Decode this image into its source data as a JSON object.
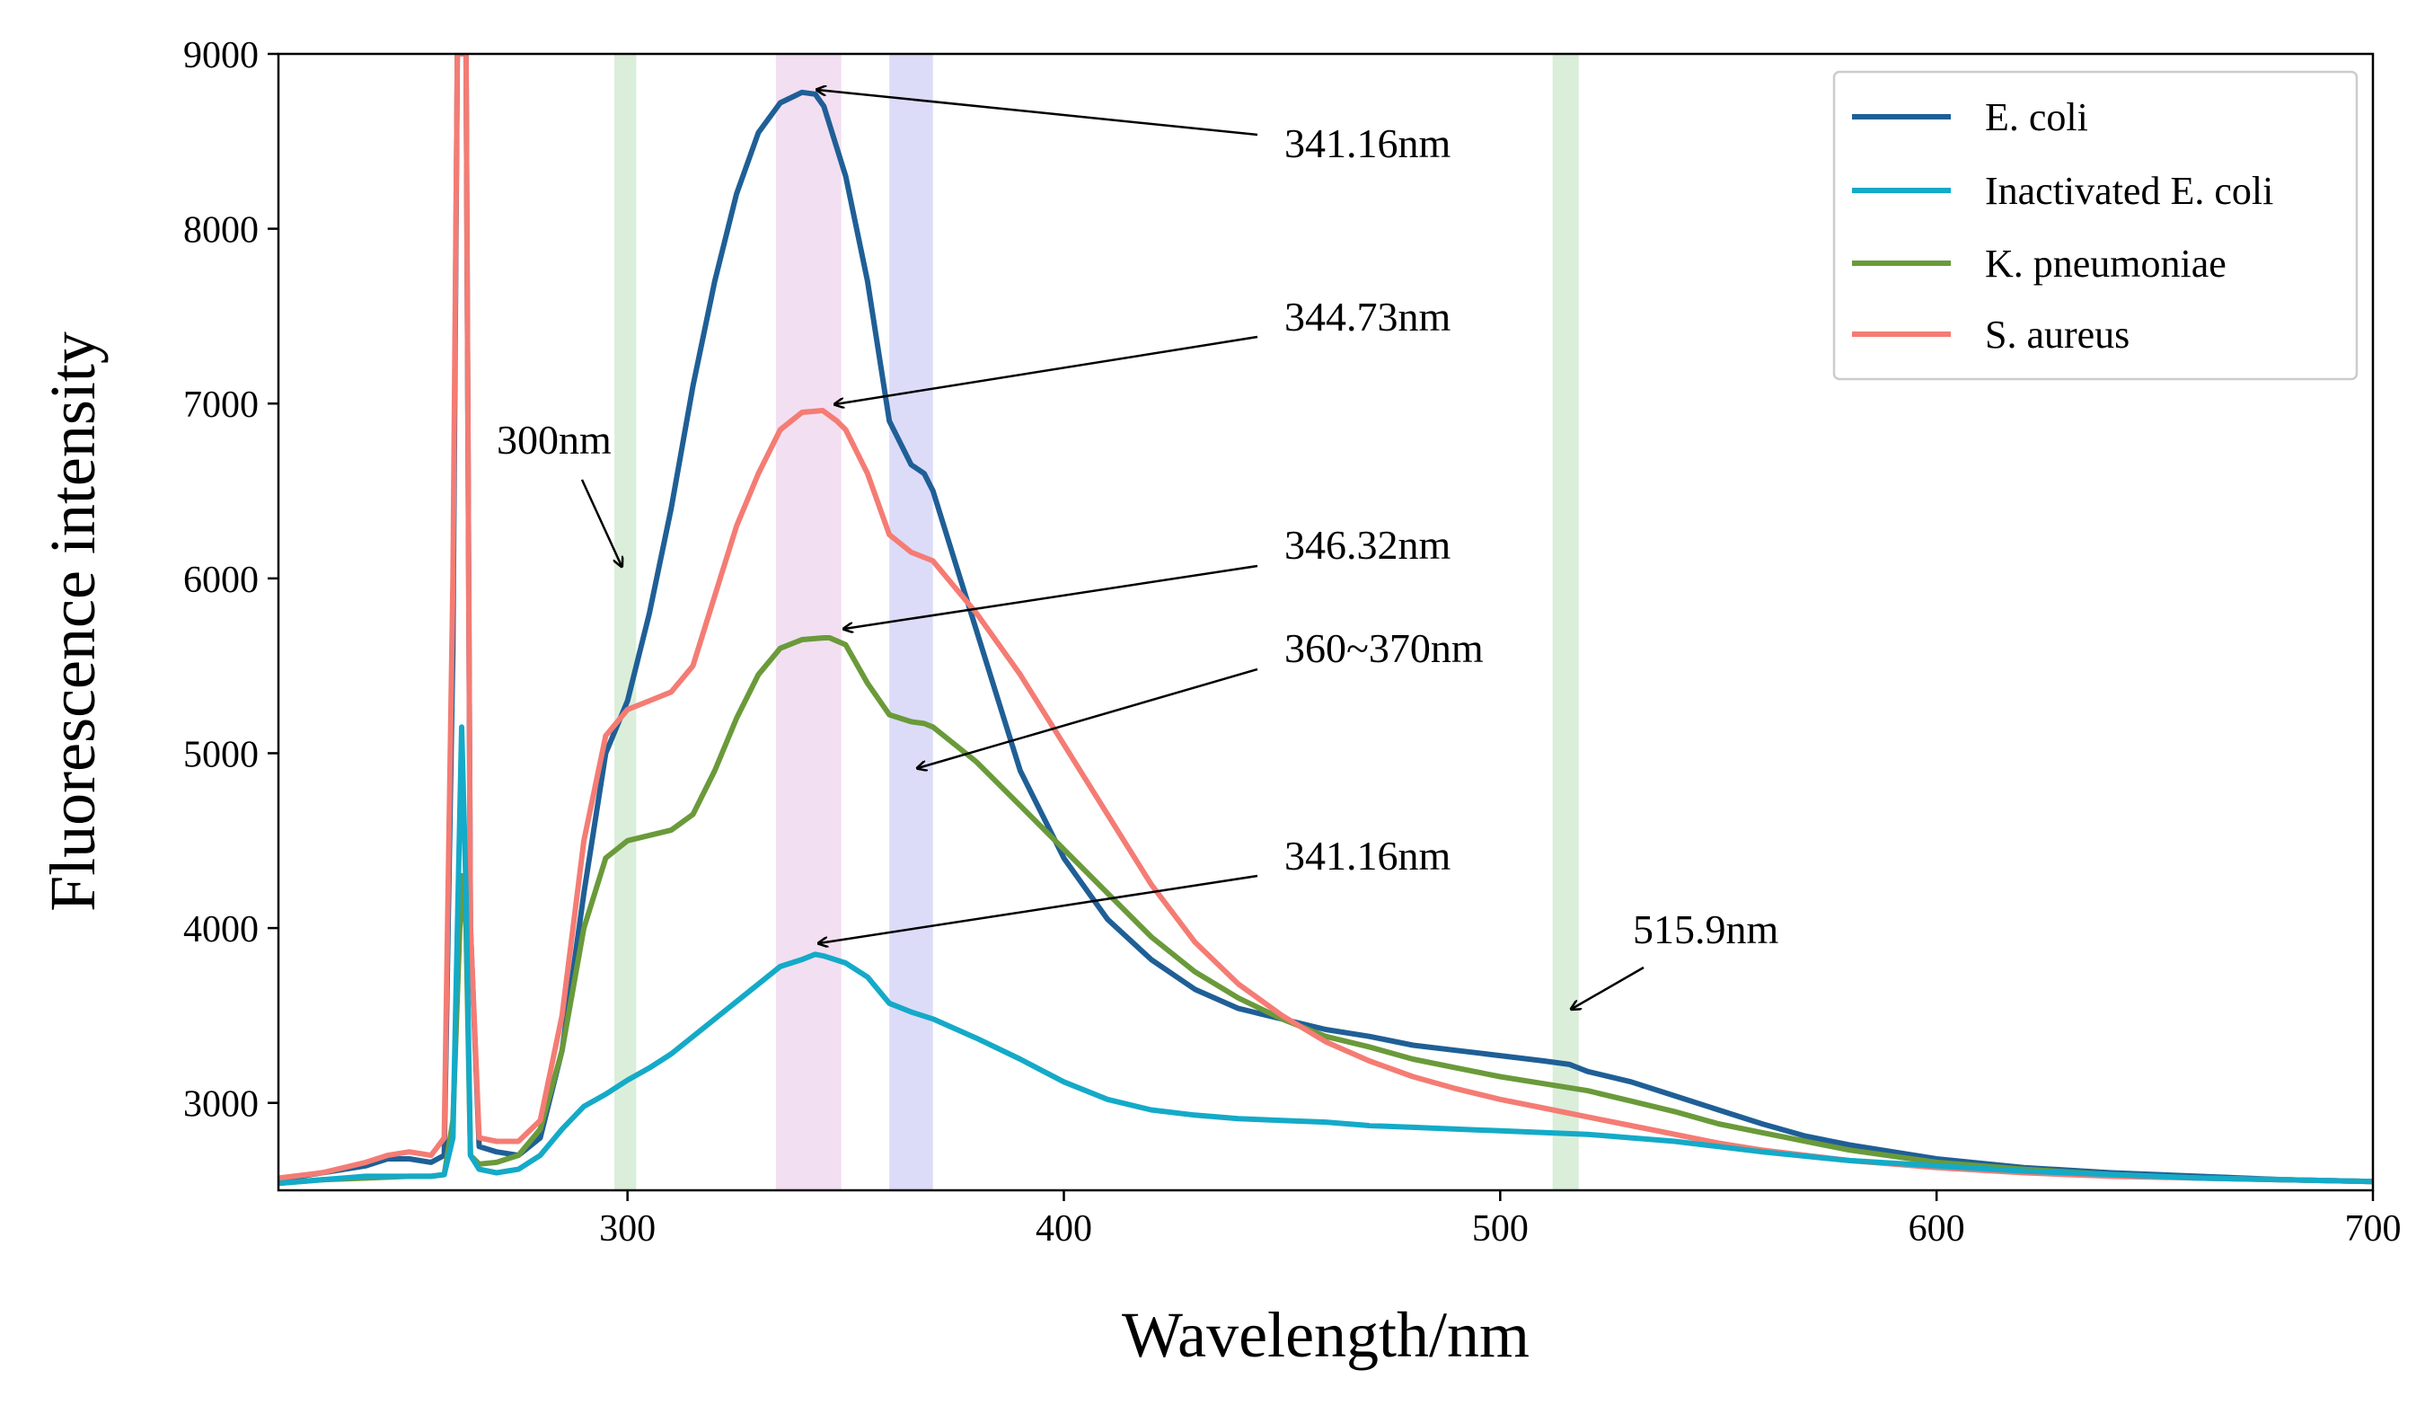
{
  "chart_data": {
    "type": "line",
    "title": "",
    "xlabel": "Wavelength/nm",
    "ylabel": "Fluorescence intensity",
    "xlim": [
      220,
      700
    ],
    "ylim": [
      2500,
      9000
    ],
    "xticks": [
      300,
      400,
      500,
      600,
      700
    ],
    "yticks": [
      3000,
      4000,
      5000,
      6000,
      7000,
      8000,
      9000
    ],
    "grid": false,
    "legend_position": "top-right",
    "highlight_bands": [
      {
        "from": 297,
        "to": 302,
        "color": "#d6ecd6"
      },
      {
        "from": 334,
        "to": 349,
        "color": "#f1dcef"
      },
      {
        "from": 360,
        "to": 370,
        "color": "#d8d8f8"
      },
      {
        "from": 512,
        "to": 518,
        "color": "#d6ecd6"
      }
    ],
    "series": [
      {
        "name": "E. coli",
        "color": "#1f5f96",
        "x": [
          220,
          230,
          240,
          245,
          250,
          255,
          258,
          260,
          261,
          262,
          263,
          264,
          266,
          270,
          275,
          280,
          285,
          290,
          295,
          300,
          305,
          310,
          315,
          320,
          325,
          330,
          335,
          340,
          343,
          345,
          350,
          355,
          360,
          365,
          368,
          370,
          375,
          380,
          385,
          390,
          400,
          410,
          420,
          430,
          440,
          450,
          460,
          470,
          480,
          490,
          500,
          510,
          515.9,
          520,
          530,
          540,
          550,
          560,
          570,
          580,
          590,
          600,
          620,
          640,
          660,
          680,
          700
        ],
        "y": [
          2560,
          2600,
          2640,
          2680,
          2680,
          2660,
          2700,
          5600,
          9000,
          9000,
          9000,
          4000,
          2750,
          2720,
          2700,
          2800,
          3300,
          4200,
          5000,
          5300,
          5800,
          6400,
          7100,
          7700,
          8200,
          8550,
          8720,
          8780,
          8770,
          8700,
          8300,
          7700,
          6900,
          6650,
          6600,
          6500,
          6100,
          5700,
          5300,
          4900,
          4400,
          4050,
          3820,
          3650,
          3540,
          3480,
          3420,
          3380,
          3330,
          3300,
          3270,
          3240,
          3220,
          3180,
          3120,
          3040,
          2960,
          2880,
          2810,
          2760,
          2720,
          2680,
          2630,
          2600,
          2580,
          2560,
          2550
        ]
      },
      {
        "name": "Inactivated E. coli",
        "color": "#14aac8",
        "x": [
          220,
          230,
          240,
          250,
          255,
          258,
          260,
          262,
          263,
          264,
          266,
          270,
          275,
          280,
          285,
          290,
          295,
          300,
          305,
          310,
          320,
          330,
          335,
          340,
          343,
          345,
          350,
          355,
          360,
          365,
          370,
          380,
          390,
          400,
          410,
          420,
          430,
          440,
          450,
          460,
          470,
          480,
          490,
          500,
          510,
          520,
          530,
          540,
          550,
          560,
          580,
          600,
          620,
          640,
          660,
          680,
          700
        ],
        "y": [
          2540,
          2560,
          2580,
          2580,
          2580,
          2590,
          2800,
          5150,
          4200,
          2700,
          2620,
          2600,
          2620,
          2700,
          2850,
          2980,
          3050,
          3130,
          3200,
          3280,
          3480,
          3680,
          3780,
          3820,
          3850,
          3840,
          3800,
          3720,
          3570,
          3520,
          3480,
          3370,
          3250,
          3120,
          3020,
          2960,
          2930,
          2910,
          2900,
          2890,
          2870,
          2860,
          2850,
          2840,
          2830,
          2820,
          2800,
          2780,
          2750,
          2720,
          2670,
          2640,
          2610,
          2590,
          2570,
          2560,
          2550
        ]
      },
      {
        "name": "K. pneumoniae",
        "color": "#6a9a3a",
        "x": [
          220,
          230,
          240,
          250,
          255,
          258,
          260,
          262,
          263,
          264,
          266,
          270,
          275,
          280,
          285,
          290,
          295,
          300,
          305,
          310,
          315,
          320,
          325,
          330,
          335,
          340,
          345,
          346.32,
          350,
          355,
          360,
          365,
          368,
          370,
          375,
          380,
          390,
          400,
          410,
          420,
          430,
          440,
          450,
          460,
          470,
          480,
          490,
          500,
          510,
          520,
          530,
          540,
          550,
          560,
          580,
          600,
          620,
          640,
          660,
          680,
          700
        ],
        "y": [
          2540,
          2560,
          2570,
          2580,
          2580,
          2590,
          2900,
          4300,
          4000,
          2700,
          2650,
          2660,
          2700,
          2850,
          3300,
          4000,
          4400,
          4500,
          4530,
          4560,
          4650,
          4900,
          5200,
          5450,
          5600,
          5650,
          5660,
          5660,
          5620,
          5400,
          5220,
          5180,
          5170,
          5150,
          5050,
          4950,
          4700,
          4450,
          4200,
          3950,
          3750,
          3600,
          3480,
          3380,
          3320,
          3250,
          3200,
          3150,
          3110,
          3070,
          3010,
          2950,
          2880,
          2830,
          2730,
          2660,
          2620,
          2590,
          2570,
          2560,
          2550
        ]
      },
      {
        "name": "S. aureus",
        "color": "#f47c74",
        "x": [
          220,
          230,
          240,
          245,
          250,
          255,
          258,
          260,
          261,
          262,
          263,
          264,
          266,
          270,
          275,
          280,
          285,
          290,
          295,
          300,
          305,
          310,
          315,
          320,
          325,
          330,
          335,
          340,
          344.73,
          348,
          350,
          355,
          360,
          365,
          370,
          375,
          380,
          390,
          400,
          410,
          420,
          430,
          440,
          450,
          460,
          470,
          480,
          490,
          500,
          510,
          520,
          530,
          540,
          550,
          560,
          570,
          580,
          590,
          600,
          620,
          640,
          660,
          680,
          700
        ],
        "y": [
          2570,
          2600,
          2660,
          2700,
          2720,
          2700,
          2800,
          6000,
          9000,
          9000,
          9000,
          4000,
          2800,
          2780,
          2780,
          2900,
          3500,
          4500,
          5100,
          5250,
          5300,
          5350,
          5500,
          5900,
          6300,
          6600,
          6850,
          6950,
          6960,
          6900,
          6850,
          6600,
          6250,
          6150,
          6100,
          5950,
          5800,
          5450,
          5050,
          4650,
          4250,
          3920,
          3680,
          3500,
          3350,
          3240,
          3150,
          3080,
          3020,
          2970,
          2920,
          2870,
          2820,
          2770,
          2730,
          2700,
          2670,
          2650,
          2630,
          2600,
          2580,
          2570,
          2560,
          2550
        ]
      }
    ],
    "annotations": [
      {
        "text": "341.16nm",
        "x": 341.16
      },
      {
        "text": "344.73nm",
        "x": 344.73
      },
      {
        "text": "300nm",
        "x": 300
      },
      {
        "text": "346.32nm",
        "x": 346.32
      },
      {
        "text": "360~370nm",
        "x": 365
      },
      {
        "text": "341.16nm",
        "x": 341.16
      },
      {
        "text": "515.9nm",
        "x": 515.9
      }
    ]
  }
}
